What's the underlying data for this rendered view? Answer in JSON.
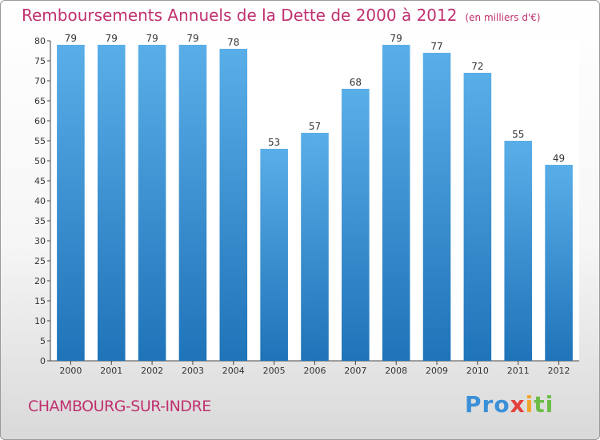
{
  "header": {
    "title": "Remboursements Annuels de la Dette de 2000 à 2012",
    "unit": "(en milliers d'€)"
  },
  "footer": {
    "city": "CHAMBOURG-SUR-INDRE",
    "logo": "Proxiti"
  },
  "colors": {
    "title": "#c0306f",
    "bar_top": "#5aaee8",
    "bar_bottom": "#1f73b8"
  },
  "chart_data": {
    "type": "bar",
    "title": "Remboursements Annuels de la Dette de 2000 à 2012",
    "subtitle": "(en milliers d'€)",
    "xlabel": "",
    "ylabel": "",
    "categories": [
      "2000",
      "2001",
      "2002",
      "2003",
      "2004",
      "2005",
      "2006",
      "2007",
      "2008",
      "2009",
      "2010",
      "2011",
      "2012"
    ],
    "values": [
      79,
      79,
      79,
      79,
      78,
      53,
      57,
      68,
      79,
      77,
      72,
      55,
      49
    ],
    "ylim": [
      0,
      80
    ],
    "yticks": [
      0,
      5,
      10,
      15,
      20,
      25,
      30,
      35,
      40,
      45,
      50,
      55,
      60,
      65,
      70,
      75,
      80
    ],
    "grid": false,
    "data_labels": true
  }
}
